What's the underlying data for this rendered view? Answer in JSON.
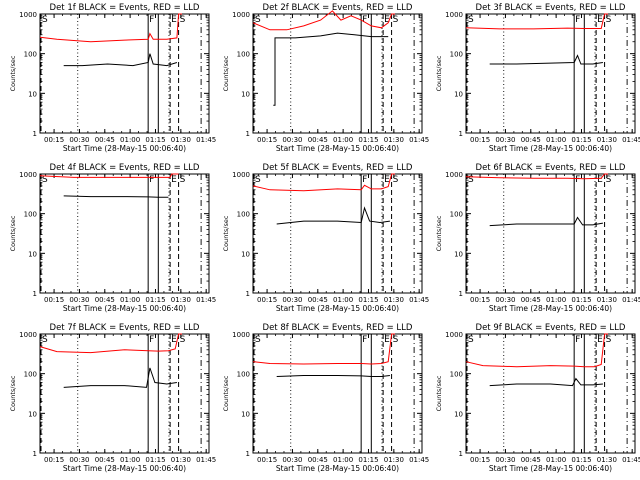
{
  "figure": {
    "ylabel": "Counts/sec",
    "xlabel": "Start Time (28-May-15 00:06:40)",
    "yticks": [
      "1",
      "10",
      "100",
      "1000"
    ],
    "xticks": [
      "00:15",
      "00:30",
      "00:45",
      "01:00",
      "01:15",
      "01:30",
      "01:45"
    ],
    "series": [
      {
        "name": "BLACK = Events",
        "color": "#000000"
      },
      {
        "name": "RED = LLD",
        "color": "#ff0000"
      }
    ]
  },
  "chart_data": [
    {
      "type": "line",
      "title": "Det 1f BLACK = Events, RED = LLD",
      "xlabel": "Start Time (28-May-15 00:06:40)",
      "ylabel": "Counts/sec",
      "y_scale": "log",
      "ylim": [
        1,
        1000
      ],
      "xlim_minutes_after_start": [
        0,
        100
      ],
      "markers": [
        {
          "label": "S",
          "minutes": 0,
          "style": "dashed"
        },
        {
          "label": "F",
          "minutes": 64,
          "style": "solid"
        },
        {
          "label": "",
          "minutes": 70,
          "style": "solid"
        },
        {
          "label": "E",
          "minutes": 77,
          "style": "dashed"
        },
        {
          "label": "S",
          "minutes": 82,
          "style": "dashed"
        }
      ],
      "series": [
        {
          "name": "RED = LLD",
          "x": [
            0,
            10,
            30,
            50,
            64,
            65,
            67,
            75,
            81,
            82,
            84
          ],
          "y": [
            260,
            230,
            200,
            220,
            230,
            320,
            230,
            230,
            250,
            1000,
            1000
          ]
        },
        {
          "name": "BLACK = Events",
          "x": [
            14,
            25,
            40,
            55,
            64,
            65,
            67,
            75,
            81
          ],
          "y": [
            50,
            50,
            55,
            50,
            60,
            100,
            55,
            50,
            60
          ]
        }
      ]
    },
    {
      "type": "line",
      "title": "Det 2f BLACK = Events, RED = LLD",
      "xlabel": "Start Time (28-May-15 00:06:40)",
      "ylabel": "Counts/sec",
      "y_scale": "log",
      "ylim": [
        1,
        1000
      ],
      "xlim_minutes_after_start": [
        0,
        100
      ],
      "markers": [
        {
          "label": "S",
          "minutes": 0,
          "style": "dashed"
        },
        {
          "label": "F",
          "minutes": 64,
          "style": "solid"
        },
        {
          "label": "",
          "minutes": 70,
          "style": "solid"
        },
        {
          "label": "E",
          "minutes": 77,
          "style": "dashed"
        },
        {
          "label": "S",
          "minutes": 82,
          "style": "dashed"
        }
      ],
      "series": [
        {
          "name": "RED = LLD",
          "x": [
            0,
            10,
            20,
            30,
            40,
            47,
            52,
            58,
            64,
            70,
            76,
            80,
            82,
            84
          ],
          "y": [
            600,
            400,
            400,
            500,
            700,
            1200,
            700,
            900,
            700,
            500,
            450,
            600,
            1000,
            1000
          ]
        },
        {
          "name": "BLACK = Events",
          "x": [
            12,
            13,
            13,
            25,
            40,
            50,
            60,
            70,
            80
          ],
          "y": [
            5,
            5,
            250,
            250,
            280,
            330,
            300,
            270,
            270
          ]
        }
      ]
    },
    {
      "type": "line",
      "title": "Det 3f BLACK = Events, RED = LLD",
      "xlabel": "Start Time (28-May-15 00:06:40)",
      "ylabel": "Counts/sec",
      "y_scale": "log",
      "ylim": [
        1,
        1000
      ],
      "xlim_minutes_after_start": [
        0,
        100
      ],
      "markers": [
        {
          "label": "S",
          "minutes": 0,
          "style": "dashed"
        },
        {
          "label": "F",
          "minutes": 64,
          "style": "solid"
        },
        {
          "label": "",
          "minutes": 70,
          "style": "solid"
        },
        {
          "label": "E",
          "minutes": 77,
          "style": "dashed"
        },
        {
          "label": "S",
          "minutes": 82,
          "style": "dashed"
        }
      ],
      "series": [
        {
          "name": "RED = LLD",
          "x": [
            0,
            20,
            40,
            60,
            70,
            80,
            82,
            84
          ],
          "y": [
            450,
            420,
            420,
            440,
            430,
            430,
            1000,
            1000
          ]
        },
        {
          "name": "BLACK = Events",
          "x": [
            14,
            30,
            50,
            64,
            66,
            68,
            75,
            81
          ],
          "y": [
            55,
            55,
            58,
            60,
            90,
            55,
            55,
            60
          ]
        }
      ]
    },
    {
      "type": "line",
      "title": "Det 4f BLACK = Events, RED = LLD",
      "xlabel": "Start Time (28-May-15 00:06:40)",
      "ylabel": "Counts/sec",
      "y_scale": "log",
      "ylim": [
        1,
        1000
      ],
      "xlim_minutes_after_start": [
        0,
        100
      ],
      "markers": [
        {
          "label": "S",
          "minutes": 0,
          "style": "dashed"
        },
        {
          "label": "F",
          "minutes": 64,
          "style": "solid"
        },
        {
          "label": "",
          "minutes": 70,
          "style": "solid"
        },
        {
          "label": "E",
          "minutes": 77,
          "style": "dashed"
        },
        {
          "label": "S",
          "minutes": 82,
          "style": "dashed"
        }
      ],
      "series": [
        {
          "name": "RED = LLD",
          "x": [
            0,
            20,
            40,
            60,
            70,
            77,
            78,
            80,
            82
          ],
          "y": [
            900,
            820,
            820,
            820,
            820,
            820,
            1000,
            1000,
            1000
          ]
        },
        {
          "name": "BLACK = Events",
          "x": [
            14,
            30,
            50,
            64,
            70,
            76
          ],
          "y": [
            280,
            270,
            270,
            265,
            260,
            260
          ]
        }
      ]
    },
    {
      "type": "line",
      "title": "Det 5f BLACK = Events, RED = LLD",
      "xlabel": "Start Time (28-May-15 00:06:40)",
      "ylabel": "Counts/sec",
      "y_scale": "log",
      "ylim": [
        1,
        1000
      ],
      "xlim_minutes_after_start": [
        0,
        100
      ],
      "markers": [
        {
          "label": "S",
          "minutes": 0,
          "style": "dashed"
        },
        {
          "label": "F",
          "minutes": 64,
          "style": "solid"
        },
        {
          "label": "",
          "minutes": 70,
          "style": "solid"
        },
        {
          "label": "E",
          "minutes": 77,
          "style": "dashed"
        },
        {
          "label": "S",
          "minutes": 82,
          "style": "dashed"
        }
      ],
      "series": [
        {
          "name": "RED = LLD",
          "x": [
            0,
            10,
            30,
            50,
            64,
            66,
            70,
            76,
            80,
            82,
            84
          ],
          "y": [
            500,
            400,
            380,
            420,
            400,
            520,
            420,
            420,
            480,
            1000,
            1000
          ]
        },
        {
          "name": "BLACK = Events",
          "x": [
            14,
            30,
            50,
            64,
            66,
            69,
            75,
            81
          ],
          "y": [
            55,
            65,
            65,
            60,
            140,
            65,
            60,
            65
          ]
        }
      ]
    },
    {
      "type": "line",
      "title": "Det 6f BLACK = Events, RED = LLD",
      "xlabel": "Start Time (28-May-15 00:06:40)",
      "ylabel": "Counts/sec",
      "y_scale": "log",
      "ylim": [
        1,
        1000
      ],
      "xlim_minutes_after_start": [
        0,
        100
      ],
      "markers": [
        {
          "label": "S",
          "minutes": 0,
          "style": "dashed"
        },
        {
          "label": "F",
          "minutes": 64,
          "style": "solid"
        },
        {
          "label": "",
          "minutes": 70,
          "style": "solid"
        },
        {
          "label": "E",
          "minutes": 77,
          "style": "dashed"
        },
        {
          "label": "S",
          "minutes": 82,
          "style": "dashed"
        }
      ],
      "series": [
        {
          "name": "RED = LLD",
          "x": [
            0,
            20,
            40,
            60,
            70,
            80,
            82,
            84
          ],
          "y": [
            850,
            800,
            780,
            780,
            760,
            780,
            1000,
            1000
          ]
        },
        {
          "name": "BLACK = Events",
          "x": [
            14,
            30,
            50,
            64,
            66,
            69,
            75,
            81
          ],
          "y": [
            50,
            55,
            55,
            55,
            80,
            52,
            52,
            58
          ]
        }
      ]
    },
    {
      "type": "line",
      "title": "Det 7f BLACK = Events, RED = LLD",
      "xlabel": "Start Time (28-May-15 00:06:40)",
      "ylabel": "Counts/sec",
      "y_scale": "log",
      "ylim": [
        1,
        1000
      ],
      "xlim_minutes_after_start": [
        0,
        100
      ],
      "markers": [
        {
          "label": "S",
          "minutes": 0,
          "style": "dashed"
        },
        {
          "label": "F",
          "minutes": 64,
          "style": "solid"
        },
        {
          "label": "",
          "minutes": 70,
          "style": "solid"
        },
        {
          "label": "E",
          "minutes": 77,
          "style": "dashed"
        },
        {
          "label": "S",
          "minutes": 82,
          "style": "dashed"
        }
      ],
      "series": [
        {
          "name": "RED = LLD",
          "x": [
            0,
            10,
            30,
            50,
            64,
            70,
            76,
            80,
            82,
            84
          ],
          "y": [
            480,
            360,
            340,
            400,
            380,
            370,
            380,
            420,
            1000,
            1000
          ]
        },
        {
          "name": "BLACK = Events",
          "x": [
            14,
            30,
            50,
            63,
            65,
            68,
            75,
            81
          ],
          "y": [
            45,
            50,
            50,
            45,
            140,
            60,
            55,
            60
          ]
        }
      ]
    },
    {
      "type": "line",
      "title": "Det 8f BLACK = Events, RED = LLD",
      "xlabel": "Start Time (28-May-15 00:06:40)",
      "ylabel": "Counts/sec",
      "y_scale": "log",
      "ylim": [
        1,
        1000
      ],
      "xlim_minutes_after_start": [
        0,
        100
      ],
      "markers": [
        {
          "label": "S",
          "minutes": 0,
          "style": "dashed"
        },
        {
          "label": "F",
          "minutes": 64,
          "style": "solid"
        },
        {
          "label": "",
          "minutes": 70,
          "style": "solid"
        },
        {
          "label": "E",
          "minutes": 77,
          "style": "dashed"
        },
        {
          "label": "S",
          "minutes": 82,
          "style": "dashed"
        }
      ],
      "series": [
        {
          "name": "RED = LLD",
          "x": [
            0,
            10,
            30,
            50,
            64,
            70,
            76,
            80,
            82,
            84
          ],
          "y": [
            200,
            180,
            175,
            180,
            180,
            175,
            180,
            200,
            1000,
            1000
          ]
        },
        {
          "name": "BLACK = Events",
          "x": [
            14,
            30,
            50,
            64,
            70,
            76,
            81
          ],
          "y": [
            85,
            90,
            90,
            88,
            85,
            85,
            90
          ]
        }
      ]
    },
    {
      "type": "line",
      "title": "Det 9f BLACK = Events, RED = LLD",
      "xlabel": "Start Time (28-May-15 00:06:40)",
      "ylabel": "Counts/sec",
      "y_scale": "log",
      "ylim": [
        1,
        1000
      ],
      "xlim_minutes_after_start": [
        0,
        100
      ],
      "markers": [
        {
          "label": "S",
          "minutes": 0,
          "style": "dashed"
        },
        {
          "label": "F",
          "minutes": 64,
          "style": "solid"
        },
        {
          "label": "",
          "minutes": 70,
          "style": "solid"
        },
        {
          "label": "E",
          "minutes": 77,
          "style": "dashed"
        },
        {
          "label": "S",
          "minutes": 82,
          "style": "dashed"
        }
      ],
      "series": [
        {
          "name": "RED = LLD",
          "x": [
            0,
            10,
            30,
            50,
            64,
            70,
            76,
            80,
            82,
            84
          ],
          "y": [
            200,
            160,
            150,
            160,
            155,
            150,
            150,
            170,
            1000,
            1000
          ]
        },
        {
          "name": "BLACK = Events",
          "x": [
            14,
            30,
            50,
            63,
            65,
            68,
            75,
            81
          ],
          "y": [
            50,
            55,
            55,
            50,
            75,
            52,
            52,
            55
          ]
        }
      ]
    }
  ]
}
